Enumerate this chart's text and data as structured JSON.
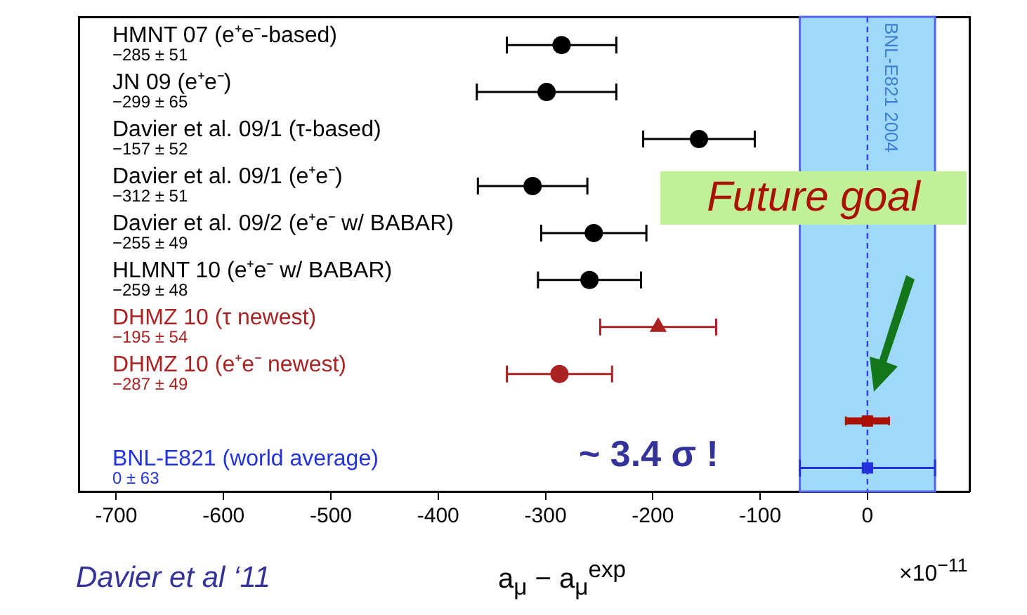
{
  "chart_data": {
    "type": "scatter",
    "orientation": "horizontal",
    "xlabel": "a$_{μ}$ − a$_{μ}$$^{exp}$",
    "categories": [
      "HMNT 07 (e⁺e⁻-based)",
      "JN 09 (e⁺e⁻)",
      "Davier et al. 09/1 (τ-based)",
      "Davier et al. 09/1 (e⁺e⁻)",
      "Davier et al. 09/2 (e⁺e⁻ w/ BABAR)",
      "HLMNT 10 (e⁺e⁻ w/ BABAR)",
      "DHMZ 10 (τ newest)",
      "DHMZ 10 (e⁺e⁻ newest)",
      null,
      "BNL-E821 (world average)"
    ],
    "series": [
      {
        "color": "#000000",
        "marker": "circle",
        "values": [
          -285,
          -299,
          -157,
          -312,
          -255,
          -259,
          null,
          null,
          null,
          null
        ],
        "errors": [
          51,
          65,
          52,
          51,
          49,
          48,
          null,
          null,
          null,
          null
        ]
      },
      {
        "color": "#aa2222",
        "marker": "triangle",
        "values": [
          null,
          null,
          null,
          null,
          null,
          null,
          -195,
          null,
          null,
          null
        ],
        "errors": [
          null,
          null,
          null,
          null,
          null,
          null,
          54,
          null,
          null,
          null
        ]
      },
      {
        "color": "#aa2222",
        "marker": "circle",
        "values": [
          null,
          null,
          null,
          null,
          null,
          null,
          null,
          -287,
          null,
          null
        ],
        "errors": [
          null,
          null,
          null,
          null,
          null,
          null,
          null,
          49,
          null,
          null
        ]
      },
      {
        "name": "Future goal",
        "color": "#aa1100",
        "marker": "square",
        "values": [
          null,
          null,
          null,
          null,
          null,
          null,
          null,
          null,
          0,
          null
        ],
        "errors": [
          null,
          null,
          null,
          null,
          null,
          null,
          null,
          null,
          20,
          null
        ]
      },
      {
        "color": "#2233dd",
        "marker": "square",
        "values": [
          null,
          null,
          null,
          null,
          null,
          null,
          null,
          null,
          null,
          0
        ],
        "errors": [
          null,
          null,
          null,
          null,
          null,
          null,
          null,
          null,
          null,
          63
        ]
      }
    ],
    "xlim": [
      -735,
      95
    ],
    "xticks": [
      -700,
      -600,
      -500,
      -400,
      -300,
      -200,
      -100,
      0
    ],
    "bands": [
      {
        "axis": "x",
        "from": -63,
        "to": 63,
        "label": "BNL-E821 2004",
        "color": "#9fd8f8"
      }
    ],
    "ref_lines": [
      {
        "axis": "x",
        "value": 0,
        "color": "#3344ee",
        "line_style": "dashed"
      }
    ],
    "annotations": [
      "−285 ± 51",
      "−299 ± 65",
      "−157 ± 52",
      "−312 ± 51",
      "−255 ± 49",
      "−259 ± 48",
      "−195 ± 54",
      "−287 ± 49",
      "0 ± 63",
      "~ 3.4 σ !",
      "Davier et al ‘11",
      "×10$^{−11}$"
    ],
    "grid": false,
    "legend": false
  }
}
